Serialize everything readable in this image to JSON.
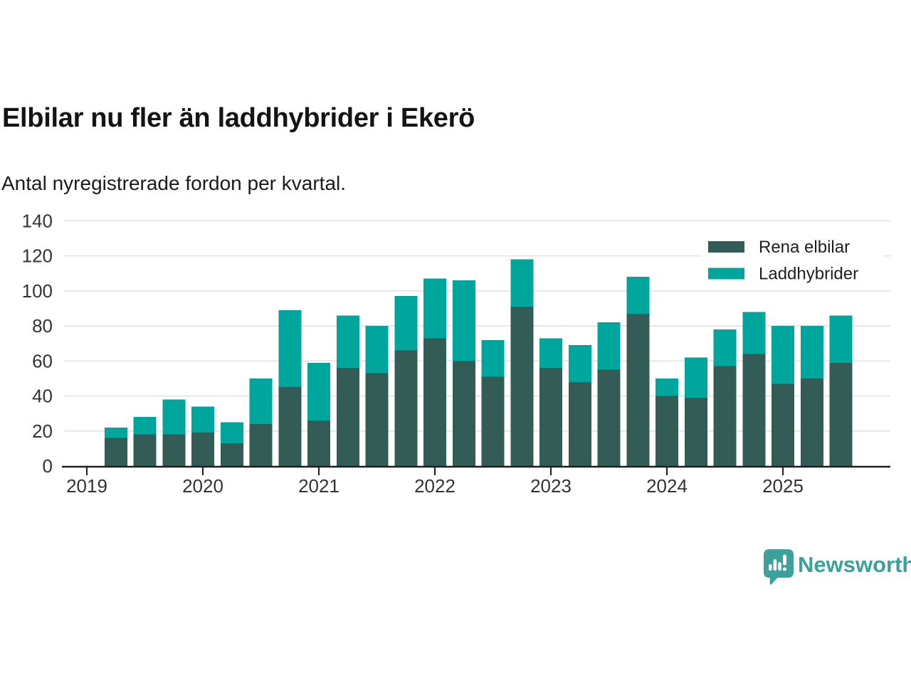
{
  "header": {
    "title": "Elbilar nu fler än laddhybrider i Ekerö",
    "subtitle": "Antal nyregistrerade fordon per kvartal."
  },
  "branding": {
    "name": "Newsworthy",
    "icon": "newsworthy-speech-bubble-barchart-icon",
    "color": "#3ba29b"
  },
  "colors": {
    "rena_elbilar": "#335c56",
    "laddhybrider": "#00a59c",
    "grid": "#e2e2e2",
    "axis": "#1f1f1f",
    "tick_label": "#333333",
    "legend_text": "#1f1f1f",
    "background": "#ffffff"
  },
  "chart_data": {
    "type": "bar",
    "stacked": true,
    "title": "Elbilar nu fler än laddhybrider i Ekerö",
    "subtitle": "Antal nyregistrerade fordon per kvartal.",
    "xlabel": "",
    "ylabel": "",
    "ylim": [
      0,
      140
    ],
    "y_ticks": [
      0,
      20,
      40,
      60,
      80,
      100,
      120,
      140
    ],
    "grid": true,
    "legend_position": "top-right",
    "x_tick_labels": [
      "2019",
      "2020",
      "2021",
      "2022",
      "2023",
      "2024",
      "2025"
    ],
    "categories": [
      "2019 Q2",
      "2019 Q3",
      "2019 Q4",
      "2020 Q1",
      "2020 Q2",
      "2020 Q3",
      "2020 Q4",
      "2021 Q1",
      "2021 Q2",
      "2021 Q3",
      "2021 Q4",
      "2022 Q1",
      "2022 Q2",
      "2022 Q3",
      "2022 Q4",
      "2023 Q1",
      "2023 Q2",
      "2023 Q3",
      "2023 Q4",
      "2024 Q1",
      "2024 Q2",
      "2024 Q3",
      "2024 Q4",
      "2025 Q1",
      "2025 Q2",
      "2025 Q3"
    ],
    "series": [
      {
        "name": "Rena elbilar",
        "color": "#335c56",
        "values": [
          16,
          18,
          18,
          19,
          13,
          24,
          45,
          26,
          56,
          53,
          66,
          73,
          60,
          51,
          91,
          56,
          48,
          55,
          87,
          40,
          39,
          57,
          64,
          47,
          50,
          59
        ]
      },
      {
        "name": "Laddhybrider",
        "color": "#00a59c",
        "values": [
          6,
          10,
          20,
          15,
          12,
          26,
          44,
          33,
          30,
          27,
          31,
          34,
          46,
          21,
          27,
          17,
          21,
          27,
          21,
          10,
          23,
          21,
          24,
          33,
          30,
          27
        ]
      }
    ],
    "totals": [
      22,
      28,
      38,
      34,
      25,
      50,
      89,
      59,
      86,
      80,
      97,
      107,
      106,
      72,
      118,
      73,
      69,
      82,
      108,
      50,
      62,
      78,
      88,
      80,
      80,
      86
    ]
  }
}
